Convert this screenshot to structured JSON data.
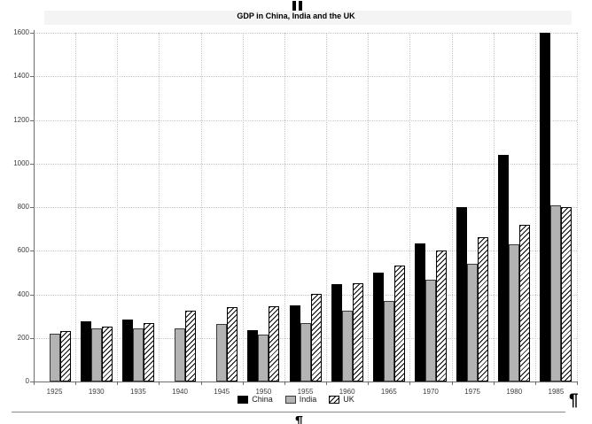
{
  "marks": {
    "top_mark_icon": "double-vertical-bar",
    "pilcrow_right": "¶",
    "pilcrow_bottom": "¶"
  },
  "chart_data": {
    "type": "bar",
    "title": "GDP in China, India and the UK",
    "categories": [
      "1925",
      "1930",
      "1935",
      "1940",
      "1945",
      "1950",
      "1955",
      "1960",
      "1965",
      "1970",
      "1975",
      "1980",
      "1985"
    ],
    "series": [
      {
        "name": "China",
        "color": "#000000",
        "pattern": "solid",
        "values": [
          null,
          275,
          285,
          null,
          null,
          235,
          350,
          445,
          500,
          635,
          800,
          1040,
          1600
        ]
      },
      {
        "name": "India",
        "color": "#b3b3b3",
        "pattern": "solid",
        "values": [
          220,
          245,
          245,
          245,
          265,
          215,
          270,
          325,
          370,
          465,
          540,
          630,
          810
        ]
      },
      {
        "name": "UK",
        "color": "#ffffff",
        "pattern": "diagonal-hatch",
        "values": [
          230,
          250,
          270,
          325,
          340,
          345,
          400,
          450,
          530,
          600,
          660,
          720,
          800
        ]
      }
    ],
    "xlabel": "",
    "ylabel": "",
    "ylim": [
      0,
      1600
    ],
    "ytick_step": 200,
    "grid": true,
    "gridline_style": "dotted",
    "legend_position": "bottom"
  }
}
